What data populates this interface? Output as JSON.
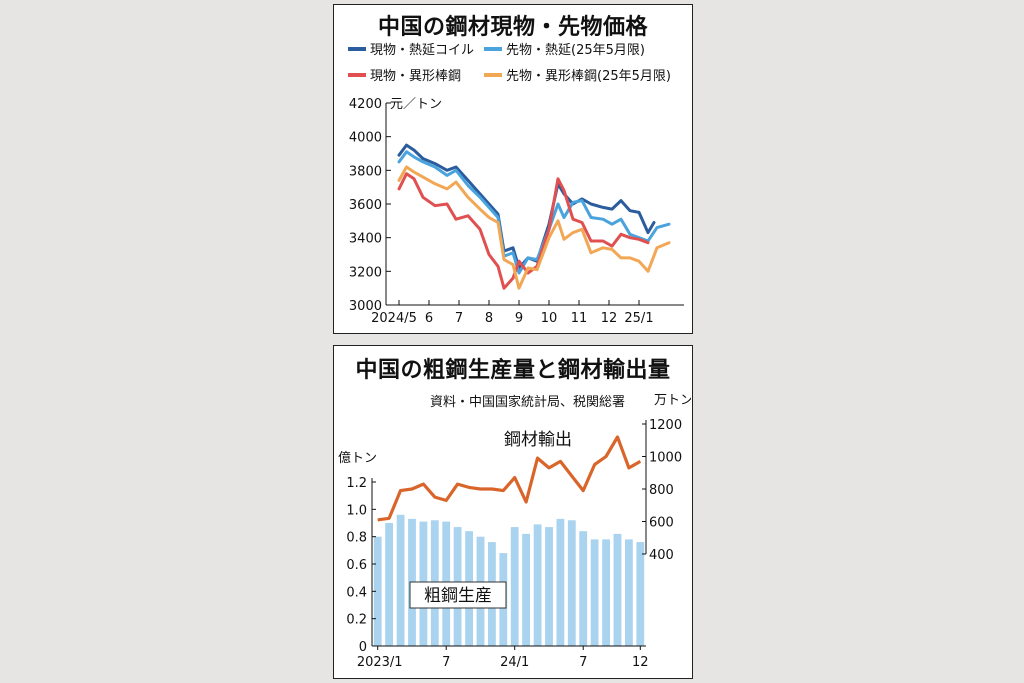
{
  "chart_data": [
    {
      "type": "line",
      "title": "中国の鋼材現物・先物価格",
      "unit": "元／トン",
      "ylim": [
        3000,
        4200
      ],
      "y_ticks": [
        3000,
        3200,
        3400,
        3600,
        3800,
        4000,
        4200
      ],
      "x_range": [
        0,
        9.4
      ],
      "x_ticks": [
        {
          "x": 0,
          "label": "2024/5"
        },
        {
          "x": 1,
          "label": "6"
        },
        {
          "x": 2,
          "label": "7"
        },
        {
          "x": 3,
          "label": "8"
        },
        {
          "x": 4,
          "label": "9"
        },
        {
          "x": 5,
          "label": "10"
        },
        {
          "x": 6,
          "label": "11"
        },
        {
          "x": 7,
          "label": "12"
        },
        {
          "x": 8,
          "label": "25/1"
        }
      ],
      "legend": [
        {
          "name": "現物・熱延コイル",
          "color": "#2b5c9e"
        },
        {
          "name": "先物・熱延(25年5月限)",
          "color": "#4aa3dc"
        },
        {
          "name": "現物・異形棒鋼",
          "color": "#e05050"
        },
        {
          "name": "先物・異形棒鋼(25年5月限)",
          "color": "#f2a755"
        }
      ],
      "series": [
        {
          "name": "現物・熱延コイル",
          "color": "#2b5c9e",
          "points": [
            [
              0,
              3890
            ],
            [
              0.25,
              3950
            ],
            [
              0.5,
              3920
            ],
            [
              0.8,
              3870
            ],
            [
              1.2,
              3840
            ],
            [
              1.6,
              3800
            ],
            [
              1.9,
              3820
            ],
            [
              2.3,
              3740
            ],
            [
              2.7,
              3660
            ],
            [
              3.0,
              3600
            ],
            [
              3.3,
              3540
            ],
            [
              3.5,
              3320
            ],
            [
              3.8,
              3340
            ],
            [
              4.0,
              3220
            ],
            [
              4.3,
              3280
            ],
            [
              4.6,
              3260
            ],
            [
              5.0,
              3480
            ],
            [
              5.3,
              3720
            ],
            [
              5.5,
              3660
            ],
            [
              5.8,
              3600
            ],
            [
              6.1,
              3630
            ],
            [
              6.4,
              3600
            ],
            [
              6.8,
              3580
            ],
            [
              7.1,
              3570
            ],
            [
              7.4,
              3620
            ],
            [
              7.7,
              3560
            ],
            [
              8.0,
              3550
            ],
            [
              8.3,
              3430
            ],
            [
              8.5,
              3490
            ]
          ]
        },
        {
          "name": "先物・熱延(25年5月限)",
          "color": "#4aa3dc",
          "points": [
            [
              0,
              3850
            ],
            [
              0.25,
              3910
            ],
            [
              0.5,
              3880
            ],
            [
              0.8,
              3850
            ],
            [
              1.2,
              3820
            ],
            [
              1.6,
              3770
            ],
            [
              1.9,
              3800
            ],
            [
              2.3,
              3710
            ],
            [
              2.7,
              3640
            ],
            [
              3.0,
              3580
            ],
            [
              3.3,
              3520
            ],
            [
              3.5,
              3290
            ],
            [
              3.8,
              3310
            ],
            [
              4.0,
              3190
            ],
            [
              4.3,
              3280
            ],
            [
              4.6,
              3270
            ],
            [
              5.0,
              3450
            ],
            [
              5.3,
              3600
            ],
            [
              5.5,
              3520
            ],
            [
              5.8,
              3610
            ],
            [
              6.1,
              3620
            ],
            [
              6.4,
              3520
            ],
            [
              6.8,
              3510
            ],
            [
              7.1,
              3480
            ],
            [
              7.4,
              3510
            ],
            [
              7.7,
              3420
            ],
            [
              8.0,
              3400
            ],
            [
              8.3,
              3380
            ],
            [
              8.6,
              3460
            ],
            [
              9.0,
              3480
            ]
          ]
        },
        {
          "name": "現物・異形棒鋼",
          "color": "#e05050",
          "points": [
            [
              0,
              3690
            ],
            [
              0.25,
              3780
            ],
            [
              0.5,
              3750
            ],
            [
              0.8,
              3640
            ],
            [
              1.2,
              3590
            ],
            [
              1.6,
              3600
            ],
            [
              1.9,
              3510
            ],
            [
              2.3,
              3530
            ],
            [
              2.7,
              3450
            ],
            [
              3.0,
              3300
            ],
            [
              3.3,
              3230
            ],
            [
              3.5,
              3100
            ],
            [
              3.8,
              3160
            ],
            [
              4.0,
              3260
            ],
            [
              4.3,
              3190
            ],
            [
              4.6,
              3230
            ],
            [
              5.0,
              3450
            ],
            [
              5.3,
              3750
            ],
            [
              5.5,
              3680
            ],
            [
              5.8,
              3510
            ],
            [
              6.1,
              3490
            ],
            [
              6.4,
              3380
            ],
            [
              6.8,
              3380
            ],
            [
              7.1,
              3350
            ],
            [
              7.4,
              3420
            ],
            [
              7.7,
              3400
            ],
            [
              8.0,
              3390
            ],
            [
              8.3,
              3370
            ]
          ]
        },
        {
          "name": "先物・異形棒鋼(25年5月限)",
          "color": "#f2a755",
          "points": [
            [
              0,
              3740
            ],
            [
              0.25,
              3820
            ],
            [
              0.5,
              3790
            ],
            [
              0.8,
              3760
            ],
            [
              1.2,
              3720
            ],
            [
              1.6,
              3690
            ],
            [
              1.9,
              3730
            ],
            [
              2.3,
              3640
            ],
            [
              2.7,
              3570
            ],
            [
              3.0,
              3520
            ],
            [
              3.3,
              3490
            ],
            [
              3.5,
              3270
            ],
            [
              3.8,
              3240
            ],
            [
              4.0,
              3100
            ],
            [
              4.3,
              3220
            ],
            [
              4.6,
              3210
            ],
            [
              5.0,
              3400
            ],
            [
              5.3,
              3500
            ],
            [
              5.5,
              3390
            ],
            [
              5.8,
              3430
            ],
            [
              6.1,
              3450
            ],
            [
              6.4,
              3310
            ],
            [
              6.8,
              3340
            ],
            [
              7.1,
              3330
            ],
            [
              7.4,
              3280
            ],
            [
              7.7,
              3280
            ],
            [
              8.0,
              3260
            ],
            [
              8.3,
              3200
            ],
            [
              8.6,
              3340
            ],
            [
              9.0,
              3370
            ]
          ]
        }
      ]
    },
    {
      "type": "bar+line",
      "title": "中国の粗鋼生産量と鋼材輸出量",
      "source": "資料・中国国家統計局、税関総署",
      "left_unit": "億トン",
      "right_unit": "万トン",
      "left_ylim": [
        0,
        1.2
      ],
      "left_ticks": [
        "0",
        "0.2",
        "0.4",
        "0.6",
        "0.8",
        "1.0",
        "1.2"
      ],
      "right_ylim": [
        400,
        1200
      ],
      "right_ticks": [
        "400",
        "600",
        "800",
        "1000",
        "1200"
      ],
      "x_ticks": [
        {
          "index": 0,
          "label": "2023/1"
        },
        {
          "index": 6,
          "label": "7"
        },
        {
          "index": 12,
          "label": "24/1"
        },
        {
          "index": 18,
          "label": "7"
        },
        {
          "index": 23,
          "label": "12"
        }
      ],
      "bar_series": {
        "name": "粗鋼生産",
        "color": "#a9d3ee",
        "values": [
          0.8,
          0.9,
          0.96,
          0.93,
          0.91,
          0.92,
          0.91,
          0.87,
          0.84,
          0.8,
          0.76,
          0.68,
          0.87,
          0.82,
          0.89,
          0.87,
          0.93,
          0.92,
          0.84,
          0.78,
          0.78,
          0.82,
          0.78,
          0.76
        ]
      },
      "line_series": {
        "name": "鋼材輸出",
        "color": "#d9652b",
        "values": [
          610,
          620,
          790,
          800,
          830,
          750,
          730,
          830,
          810,
          800,
          800,
          790,
          870,
          720,
          990,
          930,
          970,
          880,
          790,
          950,
          1000,
          1120,
          930,
          970
        ]
      }
    }
  ]
}
